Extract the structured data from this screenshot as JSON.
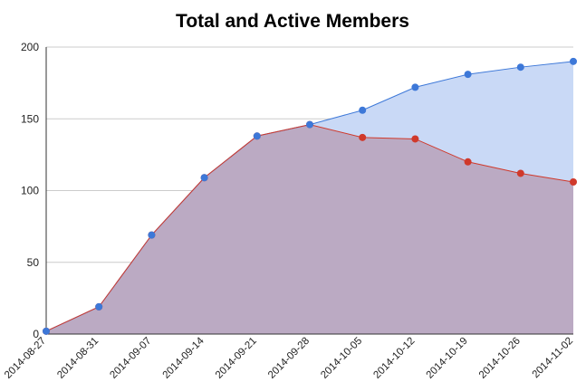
{
  "chart_data": {
    "type": "area",
    "title": "Total and Active Members",
    "xlabel": "",
    "ylabel": "",
    "ylim": [
      0,
      200
    ],
    "yticks": [
      0,
      50,
      100,
      150,
      200
    ],
    "grid": true,
    "legend": "none",
    "categories": [
      "2014-08-27",
      "2014-08-31",
      "2014-09-07",
      "2014-09-14",
      "2014-09-21",
      "2014-09-28",
      "2014-10-05",
      "2014-10-12",
      "2014-10-19",
      "2014-10-26",
      "2014-11-02"
    ],
    "series": [
      {
        "color": "#3d78d8",
        "fill": "#c9d9f6",
        "values": [
          2,
          19,
          69,
          109,
          138,
          146,
          156,
          172,
          181,
          186,
          190
        ]
      },
      {
        "color": "#d0392b",
        "fill": "#bbaac3",
        "values": [
          2,
          19,
          69,
          109,
          138,
          146,
          137,
          136,
          120,
          112,
          106
        ]
      }
    ]
  }
}
